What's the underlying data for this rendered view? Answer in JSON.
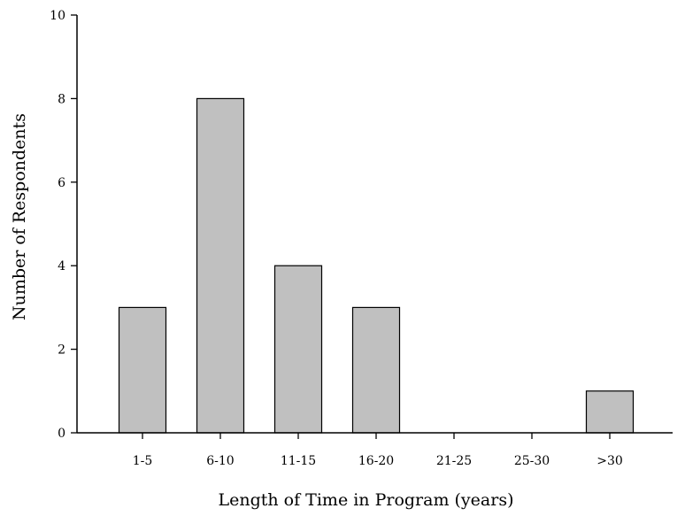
{
  "chart_data": {
    "type": "bar",
    "categories": [
      "1-5",
      "6-10",
      "11-15",
      "16-20",
      "21-25",
      "25-30",
      ">30"
    ],
    "values": [
      3,
      8,
      4,
      3,
      0,
      0,
      1
    ],
    "title": "",
    "xlabel": "Length of Time in Program (years)",
    "ylabel": "Number of Respondents",
    "ylim": [
      0,
      10
    ],
    "yticks": [
      "0",
      "2",
      "4",
      "6",
      "8",
      "10"
    ],
    "grid": false,
    "bar_color": "#c0c0c0"
  }
}
